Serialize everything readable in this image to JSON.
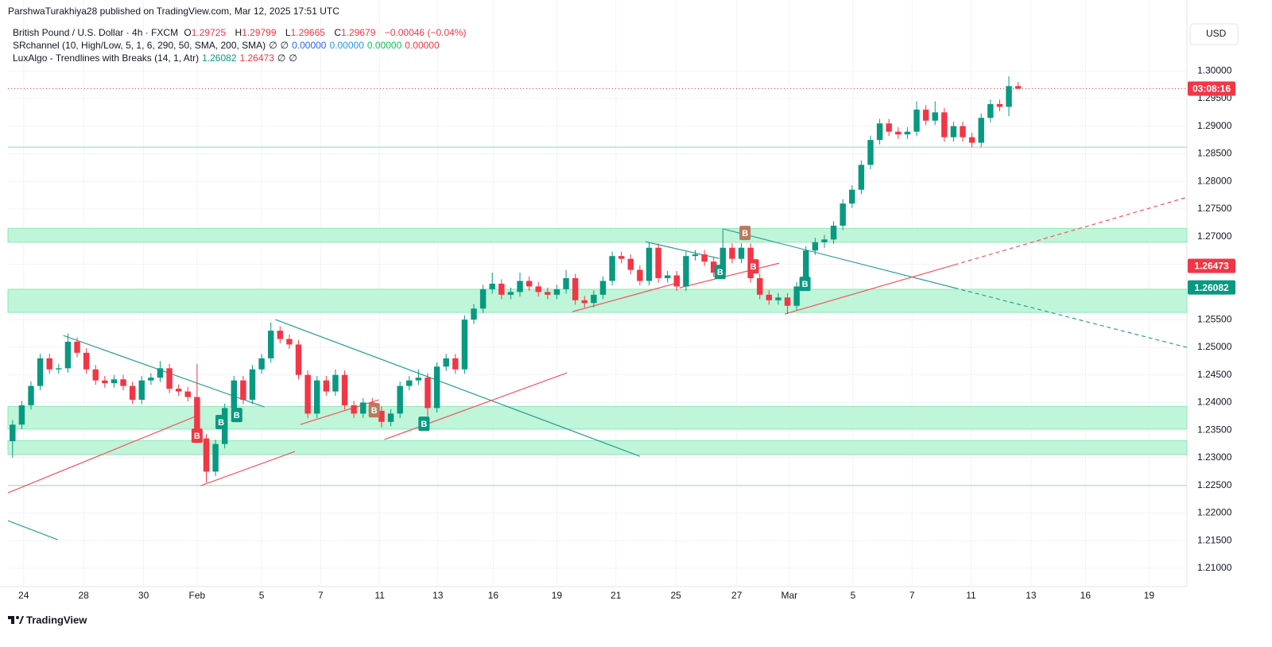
{
  "published": "ParshwaTurakhiya28 published on TradingView.com, Mar 12, 2025 17:51 UTC",
  "brand": "TradingView",
  "currency": "USD",
  "chart_data": {
    "type": "candlestick",
    "instrument": "British Pound / U.S. Dollar · 4h · FXCM",
    "ohlc_letters": [
      "O",
      "H",
      "L",
      "C"
    ],
    "change": "−0.00046 (−0.04%)",
    "countdown": "03:08:16",
    "indicators": [
      {
        "name": "SRchannel (10, High/Low, 5, 1, 6, 290, 50, SMA, 200, SMA)",
        "values": [
          "∅",
          "∅",
          "0.00000",
          "0.00000",
          "0.00000",
          "0.00000"
        ],
        "colors": [
          "#131722",
          "#131722",
          "#2962ff",
          "#2196f3",
          "#00c853",
          "#f23645"
        ]
      },
      {
        "name": "LuxAlgo - Trendlines with Breaks (14, 1, Atr)",
        "values": [
          1.26082,
          1.26473,
          "∅",
          "∅"
        ],
        "colors": [
          "#089981",
          "#f23645",
          "#131722",
          "#131722"
        ]
      }
    ],
    "up_color": "#089981",
    "down_color": "#f23645",
    "grid": true,
    "xlim": [
      -0.5,
      127.3
    ],
    "ylim": [
      1.2067,
      1.3088
    ],
    "xticks": [
      {
        "value": 1.2,
        "label": "24"
      },
      {
        "value": 7.7,
        "label": "28"
      },
      {
        "value": 14.2,
        "label": "30"
      },
      {
        "value": 20.0,
        "label": "Feb"
      },
      {
        "value": 27.0,
        "label": "5"
      },
      {
        "value": 33.4,
        "label": "7"
      },
      {
        "value": 39.8,
        "label": "11"
      },
      {
        "value": 46.1,
        "label": "13"
      },
      {
        "value": 52.1,
        "label": "16"
      },
      {
        "value": 59.0,
        "label": "19"
      },
      {
        "value": 65.4,
        "label": "21"
      },
      {
        "value": 71.9,
        "label": "25"
      },
      {
        "value": 78.5,
        "label": "27"
      },
      {
        "value": 84.2,
        "label": "Mar"
      },
      {
        "value": 91.1,
        "label": "5"
      },
      {
        "value": 97.5,
        "label": "7"
      },
      {
        "value": 103.9,
        "label": "11"
      },
      {
        "value": 110.4,
        "label": "13"
      },
      {
        "value": 116.3,
        "label": "16"
      },
      {
        "value": 123.2,
        "label": "19"
      }
    ],
    "yticks": [
      {
        "value": 1.21,
        "label": "1.21000"
      },
      {
        "value": 1.215,
        "label": "1.21500"
      },
      {
        "value": 1.22,
        "label": "1.22000"
      },
      {
        "value": 1.225,
        "label": "1.22500"
      },
      {
        "value": 1.23,
        "label": "1.23000"
      },
      {
        "value": 1.235,
        "label": "1.23500"
      },
      {
        "value": 1.24,
        "label": "1.24000"
      },
      {
        "value": 1.245,
        "label": "1.24500"
      },
      {
        "value": 1.25,
        "label": "1.25000"
      },
      {
        "value": 1.255,
        "label": "1.25500"
      },
      {
        "value": 1.26,
        "label": "1.26000"
      },
      {
        "value": 1.265,
        "label": "1.26500"
      },
      {
        "value": 1.27,
        "label": "1.27000"
      },
      {
        "value": 1.275,
        "label": "1.27500"
      },
      {
        "value": 1.28,
        "label": "1.28000"
      },
      {
        "value": 1.285,
        "label": "1.28500"
      },
      {
        "value": 1.29,
        "label": "1.29000"
      },
      {
        "value": 1.295,
        "label": "1.29500"
      },
      {
        "value": 1.3,
        "label": "1.30000"
      }
    ],
    "candles": [
      [
        1.233,
        1.2368,
        1.23,
        1.236
      ],
      [
        1.236,
        1.2403,
        1.2352,
        1.2395
      ],
      [
        1.2395,
        1.2438,
        1.2387,
        1.243
      ],
      [
        1.243,
        1.2488,
        1.2422,
        1.248
      ],
      [
        1.248,
        1.2488,
        1.2452,
        1.246
      ],
      [
        1.246,
        1.247,
        1.2452,
        1.2462
      ],
      [
        1.2462,
        1.2525,
        1.2454,
        1.251
      ],
      [
        1.251,
        1.2518,
        1.2482,
        1.249
      ],
      [
        1.249,
        1.2498,
        1.2452,
        1.246
      ],
      [
        1.246,
        1.2468,
        1.2432,
        1.244
      ],
      [
        1.244,
        1.2448,
        1.2427,
        1.2435
      ],
      [
        1.2435,
        1.245,
        1.2427,
        1.2442
      ],
      [
        1.2442,
        1.245,
        1.2422,
        1.243
      ],
      [
        1.243,
        1.2438,
        1.2397,
        1.2405
      ],
      [
        1.2405,
        1.2448,
        1.2397,
        1.244
      ],
      [
        1.244,
        1.2453,
        1.2432,
        1.2445
      ],
      [
        1.2445,
        1.2475,
        1.2437,
        1.2462
      ],
      [
        1.2462,
        1.247,
        1.2417,
        1.2425
      ],
      [
        1.2425,
        1.2433,
        1.2412,
        1.242
      ],
      [
        1.242,
        1.2428,
        1.2402,
        1.241
      ],
      [
        1.241,
        1.247,
        1.2327,
        1.2335
      ],
      [
        1.2335,
        1.2343,
        1.2255,
        1.2275
      ],
      [
        1.2275,
        1.2333,
        1.2267,
        1.2325
      ],
      [
        1.2325,
        1.2398,
        1.2317,
        1.239
      ],
      [
        1.239,
        1.2448,
        1.2382,
        1.244
      ],
      [
        1.244,
        1.2448,
        1.2397,
        1.2405
      ],
      [
        1.2405,
        1.2468,
        1.2397,
        1.246
      ],
      [
        1.246,
        1.2488,
        1.2452,
        1.248
      ],
      [
        1.248,
        1.2545,
        1.2472,
        1.253
      ],
      [
        1.253,
        1.2538,
        1.2507,
        1.2515
      ],
      [
        1.2515,
        1.2523,
        1.2497,
        1.2505
      ],
      [
        1.2505,
        1.2513,
        1.2442,
        1.245
      ],
      [
        1.245,
        1.2458,
        1.2372,
        1.238
      ],
      [
        1.238,
        1.2448,
        1.2372,
        1.244
      ],
      [
        1.244,
        1.2448,
        1.2412,
        1.242
      ],
      [
        1.242,
        1.246,
        1.2412,
        1.245
      ],
      [
        1.245,
        1.2458,
        1.2387,
        1.2395
      ],
      [
        1.2395,
        1.2403,
        1.2372,
        1.238
      ],
      [
        1.238,
        1.2408,
        1.2372,
        1.24
      ],
      [
        1.24,
        1.2408,
        1.2377,
        1.2385
      ],
      [
        1.2385,
        1.2393,
        1.2355,
        1.2365
      ],
      [
        1.2365,
        1.2388,
        1.2357,
        1.238
      ],
      [
        1.238,
        1.2438,
        1.2372,
        1.243
      ],
      [
        1.243,
        1.2448,
        1.2422,
        1.244
      ],
      [
        1.244,
        1.246,
        1.2432,
        1.2445
      ],
      [
        1.2445,
        1.2453,
        1.2375,
        1.239
      ],
      [
        1.239,
        1.2473,
        1.2382,
        1.2465
      ],
      [
        1.2465,
        1.2488,
        1.2457,
        1.248
      ],
      [
        1.248,
        1.2488,
        1.2452,
        1.246
      ],
      [
        1.246,
        1.2558,
        1.2452,
        1.255
      ],
      [
        1.255,
        1.2578,
        1.2542,
        1.257
      ],
      [
        1.257,
        1.2613,
        1.2562,
        1.2605
      ],
      [
        1.2605,
        1.2635,
        1.2597,
        1.2615
      ],
      [
        1.2615,
        1.2623,
        1.2587,
        1.2595
      ],
      [
        1.2595,
        1.2608,
        1.2587,
        1.26
      ],
      [
        1.26,
        1.2635,
        1.2592,
        1.262
      ],
      [
        1.262,
        1.2628,
        1.2602,
        1.261
      ],
      [
        1.261,
        1.2618,
        1.2592,
        1.26
      ],
      [
        1.26,
        1.2608,
        1.2587,
        1.2595
      ],
      [
        1.2595,
        1.2613,
        1.2587,
        1.2605
      ],
      [
        1.2605,
        1.264,
        1.2597,
        1.2625
      ],
      [
        1.2625,
        1.2633,
        1.2577,
        1.2585
      ],
      [
        1.2585,
        1.2593,
        1.2572,
        1.258
      ],
      [
        1.258,
        1.2603,
        1.2572,
        1.2595
      ],
      [
        1.2595,
        1.2628,
        1.2587,
        1.262
      ],
      [
        1.262,
        1.2673,
        1.2612,
        1.2665
      ],
      [
        1.2665,
        1.2673,
        1.2652,
        1.266
      ],
      [
        1.266,
        1.2668,
        1.2632,
        1.264
      ],
      [
        1.264,
        1.2648,
        1.2612,
        1.262
      ],
      [
        1.262,
        1.269,
        1.2612,
        1.268
      ],
      [
        1.268,
        1.2688,
        1.2617,
        1.2625
      ],
      [
        1.2625,
        1.2638,
        1.2617,
        1.263
      ],
      [
        1.263,
        1.2638,
        1.2602,
        1.261
      ],
      [
        1.261,
        1.2673,
        1.2602,
        1.2665
      ],
      [
        1.2665,
        1.2676,
        1.2657,
        1.2668
      ],
      [
        1.2668,
        1.2676,
        1.2647,
        1.2655
      ],
      [
        1.2655,
        1.2663,
        1.2627,
        1.2635
      ],
      [
        1.2635,
        1.2715,
        1.2627,
        1.268
      ],
      [
        1.268,
        1.2688,
        1.2652,
        1.266
      ],
      [
        1.266,
        1.2688,
        1.2652,
        1.268
      ],
      [
        1.268,
        1.2688,
        1.2617,
        1.2625
      ],
      [
        1.2625,
        1.2633,
        1.2587,
        1.2595
      ],
      [
        1.2595,
        1.2603,
        1.2577,
        1.2585
      ],
      [
        1.2585,
        1.2598,
        1.2577,
        1.259
      ],
      [
        1.259,
        1.2598,
        1.256,
        1.2575
      ],
      [
        1.2575,
        1.2618,
        1.2567,
        1.261
      ],
      [
        1.261,
        1.2683,
        1.2602,
        1.2675
      ],
      [
        1.2675,
        1.2698,
        1.2667,
        1.269
      ],
      [
        1.269,
        1.2703,
        1.268,
        1.2695
      ],
      [
        1.2695,
        1.2728,
        1.2687,
        1.272
      ],
      [
        1.272,
        1.2768,
        1.2712,
        1.276
      ],
      [
        1.276,
        1.2793,
        1.2752,
        1.2785
      ],
      [
        1.2785,
        1.2838,
        1.2777,
        1.283
      ],
      [
        1.283,
        1.2883,
        1.2822,
        1.2875
      ],
      [
        1.2875,
        1.2913,
        1.2867,
        1.2905
      ],
      [
        1.2905,
        1.2913,
        1.2882,
        1.289
      ],
      [
        1.289,
        1.2898,
        1.2877,
        1.2885
      ],
      [
        1.2885,
        1.2898,
        1.2877,
        1.289
      ],
      [
        1.289,
        1.2945,
        1.2882,
        1.293
      ],
      [
        1.293,
        1.2938,
        1.2902,
        1.291
      ],
      [
        1.291,
        1.2945,
        1.2902,
        1.2925
      ],
      [
        1.2925,
        1.2933,
        1.2872,
        1.288
      ],
      [
        1.288,
        1.2908,
        1.2872,
        1.29
      ],
      [
        1.29,
        1.2908,
        1.2872,
        1.288
      ],
      [
        1.288,
        1.2888,
        1.2862,
        1.287
      ],
      [
        1.287,
        1.2923,
        1.2862,
        1.2915
      ],
      [
        1.2915,
        1.2948,
        1.2907,
        1.294
      ],
      [
        1.294,
        1.2948,
        1.2927,
        1.2935
      ],
      [
        1.2935,
        1.299,
        1.2918,
        1.29725
      ],
      [
        1.29725,
        1.29799,
        1.29665,
        1.29679
      ]
    ],
    "zone_color": "#bff5d8",
    "zone_border": "#8ee8b8",
    "zones": [
      [
        1.269,
        1.2715
      ],
      [
        1.2563,
        1.2605
      ],
      [
        1.2352,
        1.2393
      ],
      [
        1.2306,
        1.2331
      ]
    ],
    "level_color": "#9ce7bf",
    "levels": [
      1.2862,
      1.225
    ],
    "trendlines": [
      {
        "x": [
          5.5,
          27.3
        ],
        "y": [
          1.25213,
          1.23919
        ],
        "color": "#2e9f94",
        "dashed": false
      },
      {
        "x": [
          28.5,
          68.0
        ],
        "y": [
          1.255,
          1.23028
        ],
        "color": "#2e9f94",
        "dashed": false
      },
      {
        "x": [
          -0.5,
          4.9
        ],
        "y": [
          1.21863,
          1.21518
        ],
        "color": "#2e9f94",
        "dashed": false
      },
      {
        "x": [
          68.6,
          76.6
        ],
        "y": [
          1.26909,
          1.26607
        ],
        "color": "#2e9f94",
        "dashed": false
      },
      {
        "x": [
          77.1,
          102.1
        ],
        "y": [
          1.27139,
          1.26075
        ],
        "color": "#2e9f94",
        "dashed": false
      },
      {
        "x": [
          102.1,
          127.3
        ],
        "y": [
          1.26075,
          1.24997
        ],
        "color": "#2e9f94",
        "dashed": true
      },
      {
        "x": [
          -0.5,
          20.0
        ],
        "y": [
          1.22366,
          1.23761
        ],
        "color": "#f7525f",
        "dashed": false
      },
      {
        "x": [
          20.4,
          30.6
        ],
        "y": [
          1.22496,
          1.23114
        ],
        "color": "#f7525f",
        "dashed": false
      },
      {
        "x": [
          31.2,
          39.7
        ],
        "y": [
          1.23603,
          1.24048
        ],
        "color": "#f7525f",
        "dashed": false
      },
      {
        "x": [
          40.3,
          60.1
        ],
        "y": [
          1.2333,
          1.24537
        ],
        "color": "#f7525f",
        "dashed": false
      },
      {
        "x": [
          60.7,
          72.3
        ],
        "y": [
          1.25644,
          1.26176
        ],
        "color": "#f7525f",
        "dashed": false
      },
      {
        "x": [
          72.3,
          83.1
        ],
        "y": [
          1.26075,
          1.26521
        ],
        "color": "#f7525f",
        "dashed": false
      },
      {
        "x": [
          83.7,
          102.1
        ],
        "y": [
          1.25601,
          1.26492
        ],
        "color": "#f7525f",
        "dashed": false
      },
      {
        "x": [
          102.1,
          127.3
        ],
        "y": [
          1.26492,
          1.27714
        ],
        "color": "#f7525f",
        "dashed": true
      }
    ],
    "signals": [
      {
        "label": "B",
        "x": 20.0,
        "y": 1.234,
        "color": "#f23645"
      },
      {
        "label": "B",
        "x": 22.6,
        "y": 1.23646,
        "color": "#089981"
      },
      {
        "label": "B",
        "x": 24.3,
        "y": 1.23775,
        "color": "#089981"
      },
      {
        "label": "B",
        "x": 39.2,
        "y": 1.23861,
        "color": "#b97a5d"
      },
      {
        "label": "B",
        "x": 44.6,
        "y": 1.23617,
        "color": "#089981"
      },
      {
        "label": "B",
        "x": 76.7,
        "y": 1.26363,
        "color": "#089981"
      },
      {
        "label": "B",
        "x": 79.4,
        "y": 1.27067,
        "color": "#b97a5d"
      },
      {
        "label": "B",
        "x": 80.3,
        "y": 1.26463,
        "color": "#f23645"
      },
      {
        "label": "B",
        "x": 85.9,
        "y": 1.26147,
        "color": "#089981"
      }
    ]
  }
}
